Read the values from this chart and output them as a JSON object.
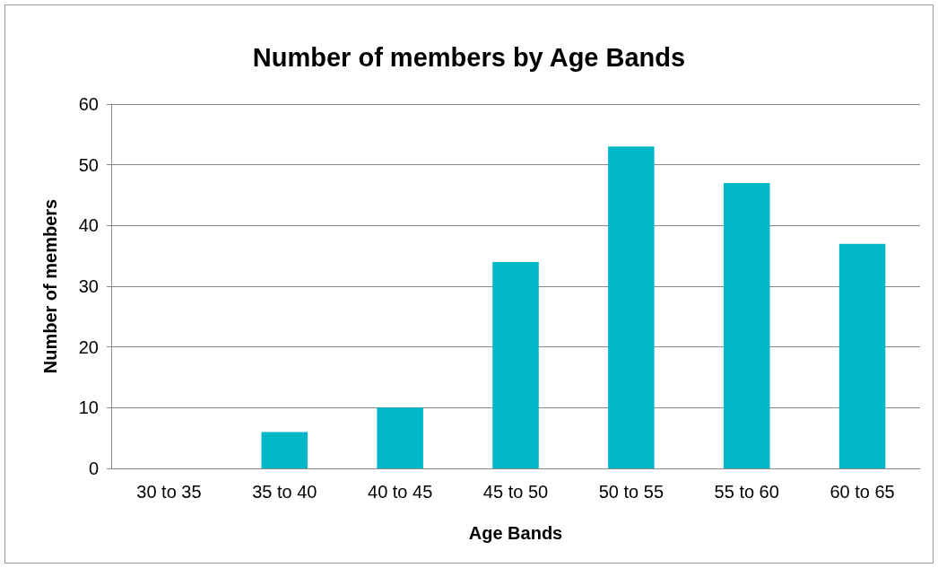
{
  "chart_data": {
    "type": "bar",
    "title": "Number of members by Age Bands",
    "xlabel": "Age Bands",
    "ylabel": "Number of members",
    "categories": [
      "30 to 35",
      "35 to 40",
      "40 to 45",
      "45 to 50",
      "50 to 55",
      "55 to 60",
      "60 to 65"
    ],
    "values": [
      0,
      6,
      10,
      34,
      53,
      47,
      37
    ],
    "color": "#00b8c8",
    "ylim": [
      0,
      60
    ],
    "yticks": [
      0,
      10,
      20,
      30,
      40,
      50,
      60
    ],
    "grid": "y"
  }
}
